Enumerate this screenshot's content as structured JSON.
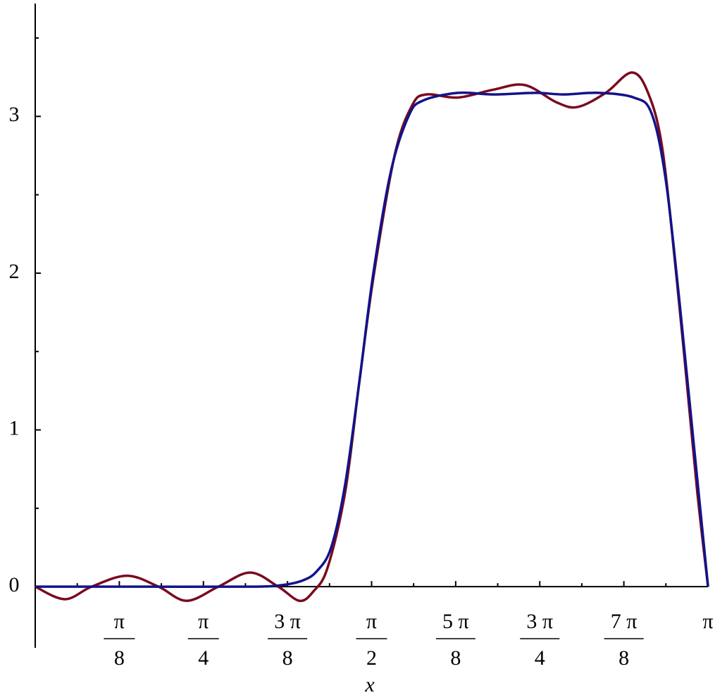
{
  "chart_data": {
    "type": "line",
    "x_label": "x",
    "xlim": [
      0,
      3.1416
    ],
    "ylim": [
      -0.39,
      3.72
    ],
    "xticks": [
      {
        "value": 0.3927,
        "label": "π/8"
      },
      {
        "value": 0.7854,
        "label": "π/4"
      },
      {
        "value": 1.1781,
        "label": "3 π/8"
      },
      {
        "value": 1.5708,
        "label": "π/2"
      },
      {
        "value": 1.9635,
        "label": "5 π/8"
      },
      {
        "value": 2.3562,
        "label": "3 π/4"
      },
      {
        "value": 2.7489,
        "label": "7 π/8"
      },
      {
        "value": 3.1416,
        "label": "π"
      }
    ],
    "xminorticks": [
      0.1963,
      0.589,
      0.9817,
      1.3744,
      1.7671,
      2.1598,
      2.5525,
      2.9452
    ],
    "yticks": [
      0,
      1,
      2,
      3
    ],
    "yminorticks": [
      0.5,
      1.5,
      2.5,
      3.5
    ],
    "series": [
      {
        "color": "#7a0a1e",
        "x": [
          0,
          0.138,
          0.263,
          0.428,
          0.576,
          0.707,
          0.855,
          1.003,
          1.135,
          1.234,
          1.299,
          1.365,
          1.447,
          1.513,
          1.579,
          1.678,
          1.76,
          1.826,
          1.974,
          2.138,
          2.286,
          2.434,
          2.533,
          2.664,
          2.786,
          2.862,
          2.928,
          2.993,
          3.043,
          3.092,
          3.142
        ],
        "values": [
          0,
          -0.08,
          0,
          0.07,
          0,
          -0.09,
          0,
          0.09,
          0,
          -0.09,
          -0.03,
          0.12,
          0.6,
          1.3,
          1.97,
          2.75,
          3.07,
          3.14,
          3.12,
          3.17,
          3.2,
          3.09,
          3.06,
          3.15,
          3.28,
          3.15,
          2.8,
          2.0,
          1.3,
          0.6,
          0
        ]
      },
      {
        "color": "#12138a",
        "x": [
          0,
          0.5,
          1.0,
          1.151,
          1.25,
          1.316,
          1.382,
          1.447,
          1.513,
          1.579,
          1.661,
          1.743,
          1.809,
          1.974,
          2.138,
          2.336,
          2.467,
          2.632,
          2.796,
          2.878,
          2.944,
          3.01,
          3.076,
          3.142
        ],
        "values": [
          0,
          0,
          0,
          0.01,
          0.04,
          0.1,
          0.25,
          0.65,
          1.3,
          2.0,
          2.65,
          3.0,
          3.1,
          3.15,
          3.14,
          3.15,
          3.14,
          3.15,
          3.12,
          3.02,
          2.6,
          1.8,
          0.9,
          0
        ]
      }
    ]
  }
}
